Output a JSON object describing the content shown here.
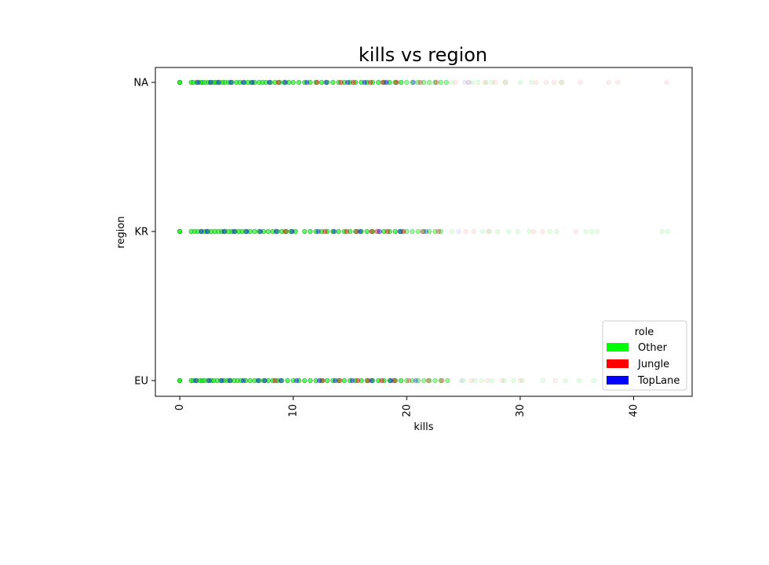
{
  "chart_data": {
    "type": "scatter",
    "title": "kills vs region",
    "xlabel": "kills",
    "ylabel": "region",
    "xlim": [
      -2.15,
      45.15
    ],
    "x_ticks": [
      0,
      10,
      20,
      30,
      40
    ],
    "categories": [
      "EU",
      "KR",
      "NA"
    ],
    "grid": false,
    "legend": {
      "title": "role",
      "placement": "lower-right",
      "entries": [
        {
          "name": "Other",
          "color": "#00ff00"
        },
        {
          "name": "Jungle",
          "color": "#ff0000"
        },
        {
          "name": "TopLane",
          "color": "#0000ff"
        }
      ]
    },
    "series": [
      {
        "name": "Other",
        "color": "#00ff00",
        "points": {
          "NA": [
            0,
            0,
            1,
            1.2,
            1.5,
            1.8,
            2,
            2.2,
            2.5,
            2.8,
            3,
            3.2,
            3.5,
            3.8,
            4,
            4.3,
            4.6,
            5,
            5.3,
            5.7,
            6,
            6.3,
            6.6,
            7,
            7.3,
            7.6,
            8,
            8.4,
            8.8,
            9.2,
            9.6,
            10,
            10.5,
            11,
            11.5,
            12,
            12.5,
            13,
            13.5,
            14,
            14.5,
            15,
            15.5,
            16,
            16.5,
            17,
            17.5,
            18,
            18.5,
            19,
            19.5,
            20,
            20.5,
            21,
            21.5,
            22,
            22.5,
            23,
            23.5,
            24,
            25.8,
            26.3,
            27,
            27.5,
            28.7,
            30,
            31,
            33.6
          ],
          "KR": [
            0,
            0,
            1,
            1.3,
            1.6,
            1.9,
            2.2,
            2.5,
            2.8,
            3.1,
            3.4,
            3.7,
            4,
            4.3,
            4.6,
            4.9,
            5.2,
            5.5,
            5.8,
            6.2,
            6.6,
            7,
            7.4,
            7.8,
            8.2,
            8.6,
            9,
            9.4,
            9.8,
            10.2,
            11,
            11.5,
            12,
            12.5,
            13,
            13.5,
            14,
            14.5,
            15,
            15.5,
            16,
            16.5,
            17,
            18,
            18.5,
            19,
            19.5,
            20,
            20.5,
            21,
            21.5,
            22,
            22.5,
            23,
            24,
            26.7,
            27.3,
            28,
            29,
            29.8,
            30.8,
            32.6,
            33.2,
            35.8,
            36.3,
            36.8,
            42.5,
            43
          ],
          "EU": [
            0,
            0,
            1,
            1.2,
            1.5,
            1.8,
            2,
            2.2,
            2.5,
            2.8,
            3,
            3.3,
            3.6,
            3.9,
            4.2,
            4.5,
            4.8,
            5.1,
            5.4,
            5.8,
            6.2,
            6.6,
            7,
            7.4,
            7.8,
            8.2,
            8.6,
            9,
            9.5,
            10,
            10.5,
            11,
            11.5,
            12,
            12.5,
            13,
            13.5,
            14,
            14.5,
            15,
            15.5,
            16,
            16.5,
            17,
            17.5,
            18,
            18.5,
            19,
            19.5,
            20,
            20.5,
            21,
            21.5,
            22,
            22.5,
            23,
            23.6,
            25,
            26,
            26.6,
            27.5,
            28.6,
            29.4,
            30.2,
            32,
            34,
            35.2,
            36.5,
            38
          ]
        }
      },
      {
        "name": "Jungle",
        "color": "#ff0000",
        "points": {
          "NA": [
            8.7,
            12.1,
            14.2,
            15.3,
            16.8,
            17.9,
            19.1,
            21.2,
            22.6,
            24.3,
            25.4,
            26.9,
            27.8,
            28.7,
            31.4,
            32.3,
            33.0,
            33.7,
            35.3,
            37.8,
            38.6,
            42.9
          ],
          "KR": [
            9.3,
            12.8,
            14.7,
            15.6,
            16.9,
            17.4,
            18.3,
            19.7,
            21.4,
            22.8,
            25.2,
            25.9,
            27.2,
            31.2,
            32.0,
            34.9
          ],
          "EU": [
            8.4,
            12.6,
            14.1,
            15.7,
            16.6,
            17.8,
            18.9,
            20.2,
            21.9,
            23.1,
            25.7,
            27.1,
            28.4,
            30.0,
            33.1
          ]
        }
      },
      {
        "name": "TopLane",
        "color": "#0000ff",
        "points": {
          "NA": [
            1.6,
            2.7,
            3.4,
            4.5,
            5.6,
            6.4,
            7.9,
            9.3,
            11.2,
            12.9,
            14.8,
            16.3,
            18.2,
            20.6,
            25.1,
            25.5
          ],
          "KR": [
            1.9,
            2.4,
            3.9,
            4.8,
            5.9,
            7.1,
            8.5,
            9.9,
            12.2,
            13.6,
            15.9,
            17.6,
            19.4,
            21.7,
            24.6
          ],
          "EU": [
            1.4,
            2.6,
            3.7,
            4.4,
            5.6,
            6.9,
            7.5,
            8.9,
            10.3,
            12.3,
            13.7,
            15.2,
            16.9,
            18.6,
            20.8,
            24.8
          ]
        }
      }
    ]
  }
}
